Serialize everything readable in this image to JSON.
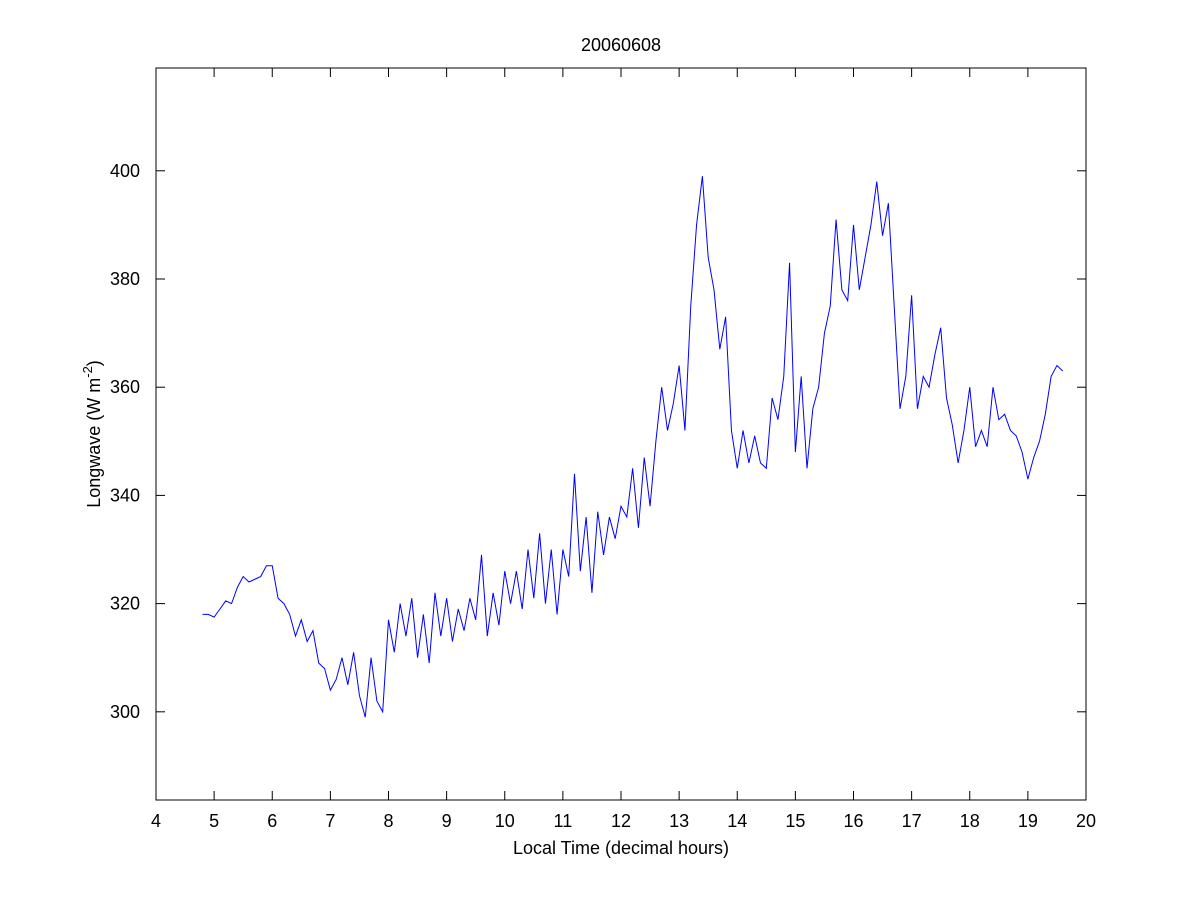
{
  "chart_data": {
    "type": "line",
    "title": "20060608",
    "xlabel": "Local Time (decimal hours)",
    "ylabel": {
      "text": "Longwave (W m",
      "superscript": "-2",
      "suffix": ")"
    },
    "xlim": [
      4,
      20
    ],
    "xticks": [
      4,
      5,
      6,
      7,
      8,
      9,
      10,
      11,
      12,
      13,
      14,
      15,
      16,
      17,
      18,
      19,
      20
    ],
    "ylim": [
      283.7,
      419
    ],
    "yticks": [
      300,
      320,
      340,
      360,
      380,
      400
    ],
    "grid": false,
    "series": [
      {
        "color": "#0000ff",
        "x": [
          4.8,
          4.9,
          5.0,
          5.1,
          5.2,
          5.3,
          5.4,
          5.5,
          5.6,
          5.7,
          5.8,
          5.9,
          6.0,
          6.1,
          6.2,
          6.3,
          6.4,
          6.5,
          6.6,
          6.7,
          6.8,
          6.9,
          7.0,
          7.1,
          7.2,
          7.3,
          7.4,
          7.5,
          7.6,
          7.7,
          7.8,
          7.9,
          8.0,
          8.1,
          8.2,
          8.3,
          8.4,
          8.5,
          8.6,
          8.7,
          8.8,
          8.9,
          9.0,
          9.1,
          9.2,
          9.3,
          9.4,
          9.5,
          9.6,
          9.7,
          9.8,
          9.9,
          10.0,
          10.1,
          10.2,
          10.3,
          10.4,
          10.5,
          10.6,
          10.7,
          10.8,
          10.9,
          11.0,
          11.1,
          11.2,
          11.3,
          11.4,
          11.5,
          11.6,
          11.7,
          11.8,
          11.9,
          12.0,
          12.1,
          12.2,
          12.3,
          12.4,
          12.5,
          12.6,
          12.7,
          12.8,
          12.9,
          13.0,
          13.1,
          13.2,
          13.3,
          13.4,
          13.5,
          13.6,
          13.7,
          13.8,
          13.9,
          14.0,
          14.1,
          14.2,
          14.3,
          14.4,
          14.5,
          14.6,
          14.7,
          14.8,
          14.9,
          15.0,
          15.1,
          15.2,
          15.3,
          15.4,
          15.5,
          15.6,
          15.7,
          15.8,
          15.9,
          16.0,
          16.1,
          16.2,
          16.3,
          16.4,
          16.5,
          16.6,
          16.7,
          16.8,
          16.9,
          17.0,
          17.1,
          17.2,
          17.3,
          17.4,
          17.5,
          17.6,
          17.7,
          17.8,
          17.9,
          18.0,
          18.1,
          18.2,
          18.3,
          18.4,
          18.5,
          18.6,
          18.7,
          18.8,
          18.9,
          19.0,
          19.1,
          19.2,
          19.3,
          19.4,
          19.5,
          19.6
        ],
        "values": [
          318,
          318,
          317.5,
          319,
          320.5,
          320,
          323,
          325,
          324,
          324.5,
          325,
          327,
          327,
          321,
          320,
          318,
          314,
          317,
          313,
          315,
          309,
          308,
          304,
          306,
          310,
          305,
          311,
          303,
          299,
          310,
          302,
          300,
          317,
          311,
          320,
          314,
          321,
          310,
          318,
          309,
          322,
          314,
          321,
          313,
          319,
          315,
          321,
          317,
          329,
          314,
          322,
          316,
          326,
          320,
          326,
          319,
          330,
          321,
          333,
          320,
          330,
          318,
          330,
          325,
          344,
          326,
          336,
          322,
          337,
          329,
          336,
          332,
          338,
          336,
          345,
          334,
          347,
          338,
          350,
          360,
          352,
          357,
          364,
          352,
          375,
          390,
          399,
          384,
          378,
          367,
          373,
          352,
          345,
          352,
          346,
          351,
          346,
          345,
          358,
          354,
          362,
          383,
          348,
          362,
          345,
          356,
          360,
          370,
          375,
          391,
          378,
          376,
          390,
          378,
          384,
          390,
          398,
          388,
          394,
          375,
          356,
          362,
          377,
          356,
          362,
          360,
          366,
          371,
          358,
          353,
          346,
          352,
          360,
          349,
          352,
          349,
          360,
          354,
          355,
          352,
          351,
          348,
          343,
          347,
          350,
          355,
          362,
          364,
          363
        ]
      }
    ]
  }
}
